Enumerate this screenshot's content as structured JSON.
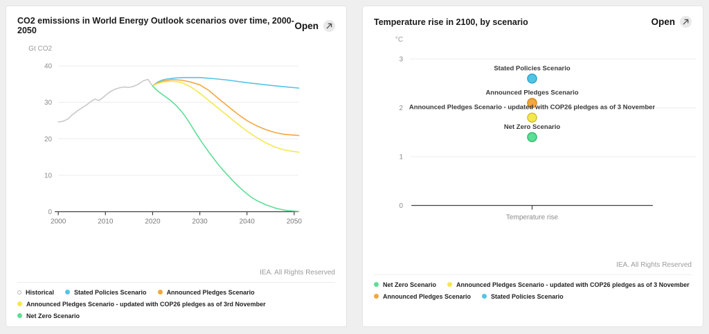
{
  "page": {
    "background": "#efefef"
  },
  "colors": {
    "historical": "#c9c9c9",
    "stated_policies": "#53c4e6",
    "announced_pledges": "#f3a73e",
    "announced_pledges_cop26": "#f4e84f",
    "net_zero": "#5edd96",
    "axis": "#3f3f3f",
    "gridline": "#ececec"
  },
  "cards": [
    {
      "open_label": "Open",
      "attribution": "IEA. All Rights Reserved",
      "legend": [
        {
          "label": "Historical",
          "color": "#b5b5b5",
          "marker": "ring"
        },
        {
          "label": "Stated Policies Scenario",
          "color": "#53c4e6",
          "marker": "dot"
        },
        {
          "label": "Announced Pledges Scenario",
          "color": "#f3a73e",
          "marker": "dot"
        },
        {
          "label": "Announced Pledges Scenario - updated with COP26 pledges as of 3rd November",
          "color": "#f4e84f",
          "marker": "dot"
        },
        {
          "label": "Net Zero Scenario",
          "color": "#5edd96",
          "marker": "dot"
        }
      ]
    },
    {
      "open_label": "Open",
      "attribution": "IEA. All Rights Reserved",
      "legend": [
        {
          "label": "Net Zero Scenario",
          "color": "#5edd96",
          "marker": "dot"
        },
        {
          "label": "Announced Pledges Scenario - updated with COP26 pledges as of 3 November",
          "color": "#f4e84f",
          "marker": "dot"
        },
        {
          "label": "Announced Pledges Scenario",
          "color": "#f3a73e",
          "marker": "dot"
        },
        {
          "label": "Stated Policies Scenario",
          "color": "#53c4e6",
          "marker": "dot"
        }
      ]
    }
  ],
  "chart_data": [
    {
      "type": "line",
      "title": "CO2 emissions in World Energy Outlook scenarios over time, 2000-2050",
      "ylabel": "Gt CO2",
      "xlabel": "",
      "xlim": [
        2000,
        2051
      ],
      "ylim": [
        0,
        40
      ],
      "xticks": [
        2000,
        2010,
        2020,
        2030,
        2040,
        2050
      ],
      "yticks": [
        0,
        10,
        20,
        30,
        40
      ],
      "grid": true,
      "series": [
        {
          "name": "Historical",
          "color": "#c9c9c9",
          "x": [
            2000,
            2001,
            2002,
            2003,
            2004,
            2005,
            2006,
            2007,
            2007.8,
            2008.6,
            2009.2,
            2010,
            2011,
            2012,
            2013,
            2014,
            2015,
            2016,
            2017,
            2018,
            2019,
            2020
          ],
          "y": [
            24.6,
            24.8,
            25.4,
            26.6,
            27.6,
            28.5,
            29.3,
            30.3,
            30.9,
            30.5,
            31.0,
            31.9,
            32.9,
            33.6,
            34.0,
            34.2,
            34.1,
            34.4,
            35.0,
            35.9,
            36.3,
            34.5
          ]
        },
        {
          "name": "Stated Policies Scenario",
          "color": "#53c4e6",
          "x": [
            2020,
            2021,
            2022,
            2023,
            2025,
            2027,
            2030,
            2033,
            2036,
            2040,
            2044,
            2047,
            2051
          ],
          "y": [
            34.5,
            35.5,
            36.1,
            36.4,
            36.7,
            36.8,
            36.8,
            36.5,
            36.1,
            35.4,
            34.8,
            34.4,
            33.9
          ]
        },
        {
          "name": "Announced Pledges Scenario",
          "color": "#f3a73e",
          "x": [
            2020,
            2021,
            2022,
            2024,
            2026,
            2028,
            2030,
            2032,
            2034,
            2036,
            2038,
            2040,
            2042,
            2044,
            2046,
            2048,
            2051
          ],
          "y": [
            34.5,
            35.3,
            35.8,
            36.2,
            36.1,
            35.6,
            34.8,
            33.2,
            31.0,
            28.9,
            26.8,
            25.0,
            23.6,
            22.5,
            21.7,
            21.2,
            20.9
          ]
        },
        {
          "name": "Announced Pledges Scenario - updated with COP26 pledges as of 3rd November",
          "color": "#f4e84f",
          "x": [
            2020,
            2021,
            2022,
            2024,
            2026,
            2028,
            2030,
            2032,
            2034,
            2036,
            2038,
            2040,
            2042,
            2044,
            2046,
            2048,
            2051
          ],
          "y": [
            34.5,
            35.1,
            35.5,
            35.8,
            35.5,
            34.3,
            32.5,
            30.4,
            28.3,
            26.2,
            24.1,
            22.1,
            20.4,
            18.9,
            17.7,
            16.9,
            16.3
          ]
        },
        {
          "name": "Net Zero Scenario",
          "color": "#5edd96",
          "x": [
            2020,
            2021,
            2022,
            2023,
            2024,
            2025,
            2026,
            2027,
            2028,
            2029,
            2030,
            2031,
            2032,
            2033,
            2034,
            2035,
            2036,
            2037,
            2038,
            2039,
            2040,
            2041,
            2042,
            2044,
            2046,
            2048,
            2051
          ],
          "y": [
            34.5,
            33.2,
            32.2,
            31.3,
            30.3,
            29.1,
            27.7,
            26.0,
            24.0,
            21.9,
            19.9,
            18.0,
            16.2,
            14.5,
            12.8,
            11.3,
            9.9,
            8.5,
            7.2,
            6.0,
            4.9,
            3.9,
            3.1,
            1.9,
            1.0,
            0.4,
            0.05
          ]
        }
      ]
    },
    {
      "type": "scatter",
      "title": "Temperature rise in 2100, by scenario",
      "ylabel": "°C",
      "xlabel": "Temperature rise",
      "ylim": [
        0,
        3
      ],
      "yticks": [
        0,
        1,
        2,
        3
      ],
      "grid": true,
      "points": [
        {
          "label": "Stated Policies Scenario",
          "value": 2.6,
          "color": "#53c4e6",
          "stroke": "#2ba7cb"
        },
        {
          "label": "Announced Pledges Scenario",
          "value": 2.1,
          "color": "#f3a73e",
          "stroke": "#d88a20"
        },
        {
          "label": "Announced Pledges Scenario - updated with COP26 pledges as of 3 November",
          "value": 1.8,
          "color": "#f4e84f",
          "stroke": "#d3c02a"
        },
        {
          "label": "Net Zero Scenario",
          "value": 1.4,
          "color": "#5edd96",
          "stroke": "#30ba6e"
        }
      ]
    }
  ]
}
